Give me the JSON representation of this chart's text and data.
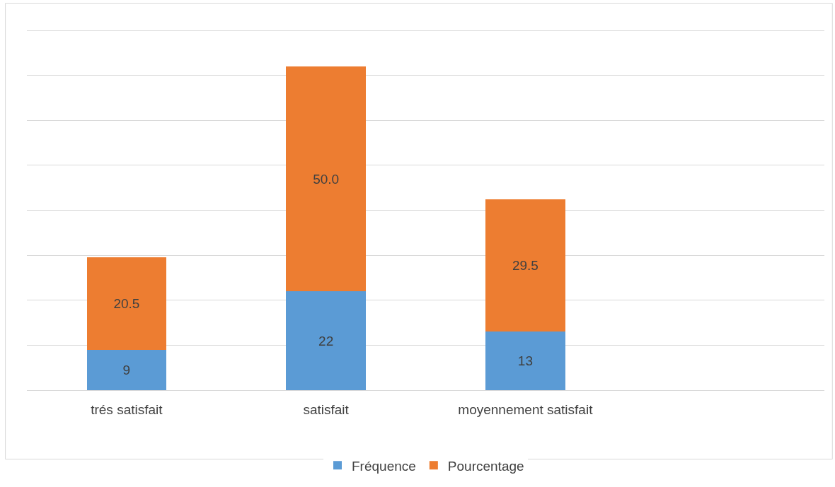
{
  "chart_data": {
    "type": "bar",
    "stacked": true,
    "categories": [
      "trés satisfait",
      "satisfait",
      "moyennement satisfait",
      null
    ],
    "series": [
      {
        "name": "Fréquence",
        "color": "#5b9bd5",
        "values": [
          9,
          22,
          13,
          null
        ],
        "value_labels": [
          "9",
          "22",
          "13",
          null
        ]
      },
      {
        "name": "Pourcentage",
        "color": "#ed7d31",
        "values": [
          20.5,
          50.0,
          29.5,
          null
        ],
        "value_labels": [
          "20.5",
          "50.0",
          "29.5",
          null
        ]
      }
    ],
    "yticks": [
      {
        "value": 0,
        "label": null
      },
      {
        "value": 10,
        "label": null
      },
      {
        "value": 20,
        "label": null
      },
      {
        "value": 30,
        "label": null
      },
      {
        "value": 40,
        "label": null
      },
      {
        "value": 50,
        "label": null
      },
      {
        "value": 60,
        "label": null
      },
      {
        "value": 70,
        "label": null
      },
      {
        "value": 80,
        "label": null
      }
    ],
    "grid": "y",
    "legend": "bottom",
    "tick_labels": "x"
  }
}
